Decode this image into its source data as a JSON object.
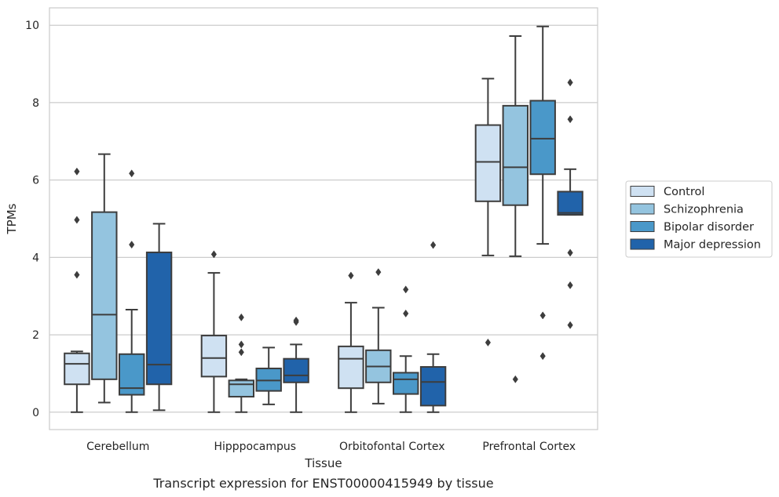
{
  "chart_data": {
    "type": "box",
    "title": "",
    "caption": "Transcript expression for ENST00000415949 by tissue",
    "xlabel": "Tissue",
    "ylabel": "TPMs",
    "ylim": [
      -0.45,
      10.45
    ],
    "yticks": [
      "0",
      "2",
      "4",
      "6",
      "8",
      "10"
    ],
    "grid": "horizontal",
    "legend_position": "outside-right",
    "categories": [
      "Cerebellum",
      "Hipppocampus",
      "Orbitofontal Cortex",
      "Prefrontal Cortex"
    ],
    "series": [
      {
        "name": "Control",
        "color": "#cfe1f2",
        "boxes": [
          {
            "whislo": 0.0,
            "q1": 0.72,
            "med": 1.25,
            "q3": 1.52,
            "whishi": 1.57,
            "fliers": [
              3.55,
              4.97,
              6.22
            ]
          },
          {
            "whislo": 0.0,
            "q1": 0.92,
            "med": 1.4,
            "q3": 1.98,
            "whishi": 3.6,
            "fliers": [
              4.08
            ]
          },
          {
            "whislo": 0.0,
            "q1": 0.62,
            "med": 1.38,
            "q3": 1.7,
            "whishi": 2.83,
            "fliers": [
              3.53
            ]
          },
          {
            "whislo": 4.05,
            "q1": 5.45,
            "med": 6.47,
            "q3": 7.42,
            "whishi": 8.62,
            "fliers": [
              1.8
            ]
          }
        ]
      },
      {
        "name": "Schizophrenia",
        "color": "#94c4df",
        "boxes": [
          {
            "whislo": 0.25,
            "q1": 0.85,
            "med": 2.52,
            "q3": 5.17,
            "whishi": 6.67,
            "fliers": []
          },
          {
            "whislo": 0.0,
            "q1": 0.4,
            "med": 0.72,
            "q3": 0.82,
            "whishi": 0.85,
            "fliers": [
              1.55,
              1.75,
              2.45
            ]
          },
          {
            "whislo": 0.22,
            "q1": 0.77,
            "med": 1.18,
            "q3": 1.6,
            "whishi": 2.7,
            "fliers": [
              3.62
            ]
          },
          {
            "whislo": 4.03,
            "q1": 5.35,
            "med": 6.33,
            "q3": 7.92,
            "whishi": 9.72,
            "fliers": [
              0.85
            ]
          }
        ]
      },
      {
        "name": "Bipolar disorder",
        "color": "#4a98c9",
        "boxes": [
          {
            "whislo": 0.0,
            "q1": 0.45,
            "med": 0.62,
            "q3": 1.5,
            "whishi": 2.65,
            "fliers": [
              4.33,
              6.17
            ]
          },
          {
            "whislo": 0.2,
            "q1": 0.55,
            "med": 0.82,
            "q3": 1.13,
            "whishi": 1.67,
            "fliers": []
          },
          {
            "whislo": 0.0,
            "q1": 0.47,
            "med": 0.85,
            "q3": 1.02,
            "whishi": 1.45,
            "fliers": [
              2.55,
              3.17
            ]
          },
          {
            "whislo": 4.35,
            "q1": 6.15,
            "med": 7.07,
            "q3": 8.05,
            "whishi": 9.97,
            "fliers": [
              1.45,
              2.5
            ]
          }
        ]
      },
      {
        "name": "Major depression",
        "color": "#2163aa",
        "boxes": [
          {
            "whislo": 0.05,
            "q1": 0.72,
            "med": 1.23,
            "q3": 4.13,
            "whishi": 4.87,
            "fliers": []
          },
          {
            "whislo": 0.0,
            "q1": 0.77,
            "med": 0.95,
            "q3": 1.38,
            "whishi": 1.75,
            "fliers": [
              2.33,
              2.37
            ]
          },
          {
            "whislo": 0.0,
            "q1": 0.17,
            "med": 0.78,
            "q3": 1.17,
            "whishi": 1.5,
            "fliers": [
              4.32
            ]
          },
          {
            "whislo": 5.1,
            "q1": 5.1,
            "med": 5.15,
            "q3": 5.7,
            "whishi": 6.28,
            "fliers": [
              2.25,
              3.28,
              4.12,
              7.57,
              8.52
            ]
          }
        ]
      }
    ]
  }
}
